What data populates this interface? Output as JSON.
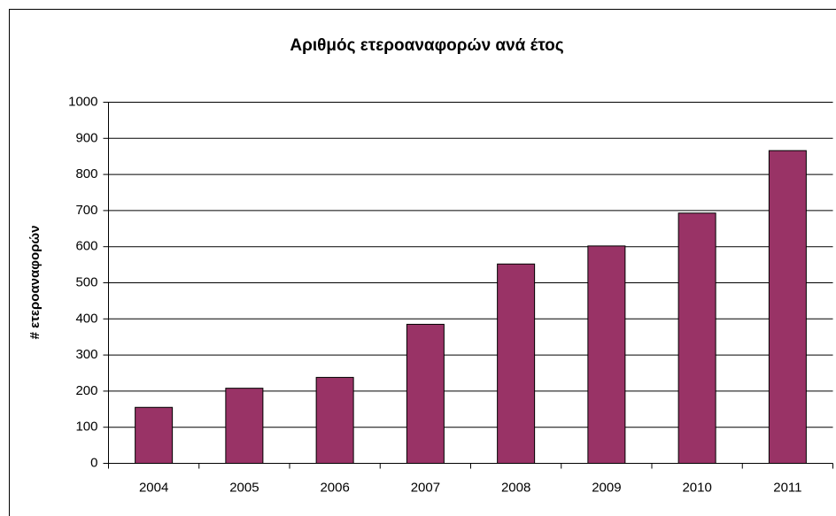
{
  "chart_data": {
    "type": "bar",
    "title": "Αριθμός ετεροαναφορών ανά έτος",
    "y_label": "# ετεροαναφορών",
    "categories": [
      "2004",
      "2005",
      "2006",
      "2007",
      "2008",
      "2009",
      "2010",
      "2011"
    ],
    "values": [
      155,
      208,
      238,
      385,
      552,
      602,
      693,
      866
    ],
    "color": "#993366",
    "ylim": [
      0,
      1000
    ],
    "yticks": [
      0,
      100,
      200,
      300,
      400,
      500,
      600,
      700,
      800,
      900,
      1000
    ],
    "grid": true
  }
}
